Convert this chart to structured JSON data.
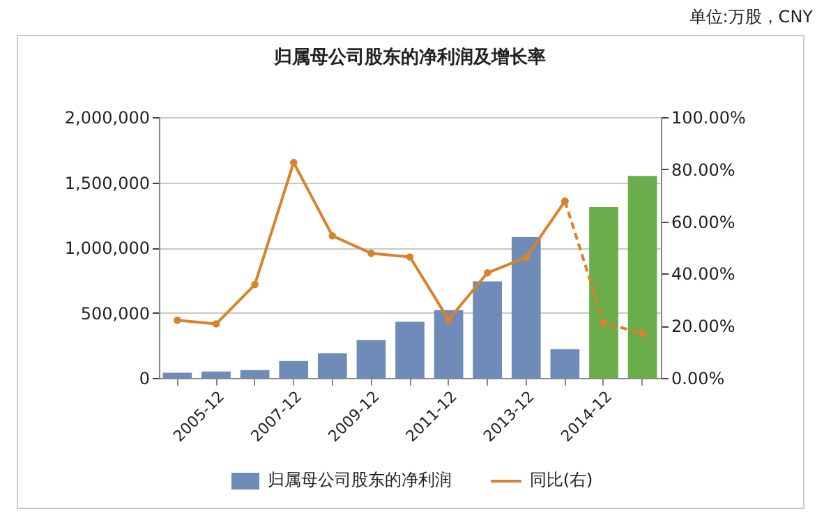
{
  "chart_data": {
    "type": "bar",
    "title": "归属母公司股东的净利润及增长率",
    "annotations": [
      "单位:万股，CNY"
    ],
    "categories": [
      null,
      "2005-12",
      null,
      "2007-12",
      null,
      "2009-12",
      null,
      "2011-12",
      null,
      "2013-12",
      null,
      "2014-12",
      null
    ],
    "series": [
      {
        "name": "归属母公司股东的净利润",
        "color": "#6f8cb8",
        "colors": [
          "#6f8cb8",
          "#6f8cb8",
          "#6f8cb8",
          "#6f8cb8",
          "#6f8cb8",
          "#6f8cb8",
          "#6f8cb8",
          "#6f8cb8",
          "#6f8cb8",
          "#6f8cb8",
          "#6f8cb8",
          "#6aad4a",
          "#6aad4a"
        ],
        "values": [
          40000,
          50000,
          60000,
          130000,
          190000,
          290000,
          430000,
          520000,
          740000,
          1080000,
          220000,
          1310000,
          1550000
        ]
      },
      {
        "name": "同比(右)",
        "type": "line",
        "axis": "y2",
        "color": "#d9822b",
        "marker": "circle",
        "line_style": "solid",
        "values": [
          22.1,
          20.7,
          35.8,
          82.6,
          54.5,
          47.8,
          46.4,
          22.3,
          40.3,
          46.2,
          67.8,
          null,
          null
        ]
      },
      {
        "type": "line",
        "axis": "y2",
        "color": "#d9822b",
        "marker": "circle",
        "line_style": "dashed",
        "values": [
          null,
          null,
          null,
          null,
          null,
          null,
          null,
          null,
          null,
          null,
          67.8,
          21.1,
          17.1
        ]
      }
    ],
    "ylim": [
      0,
      2000000
    ],
    "yticks": [
      0,
      {
        "value": 500000,
        "label": "500,000"
      },
      {
        "value": 1000000,
        "label": "1,000,000"
      },
      {
        "value": 1500000,
        "label": "1,500,000"
      },
      {
        "value": 2000000,
        "label": "2,000,000"
      }
    ],
    "y2lim": [
      0,
      100
    ],
    "y2ticks": [
      {
        "value": 0,
        "label": "0.00%"
      },
      {
        "value": 20,
        "label": "20.00%"
      },
      {
        "value": 40,
        "label": "40.00%"
      },
      {
        "value": 60,
        "label": "60.00%"
      },
      {
        "value": 80,
        "label": "80.00%"
      },
      {
        "value": 100,
        "label": "100.00%"
      }
    ],
    "grid": "y",
    "legend": "bottom"
  }
}
